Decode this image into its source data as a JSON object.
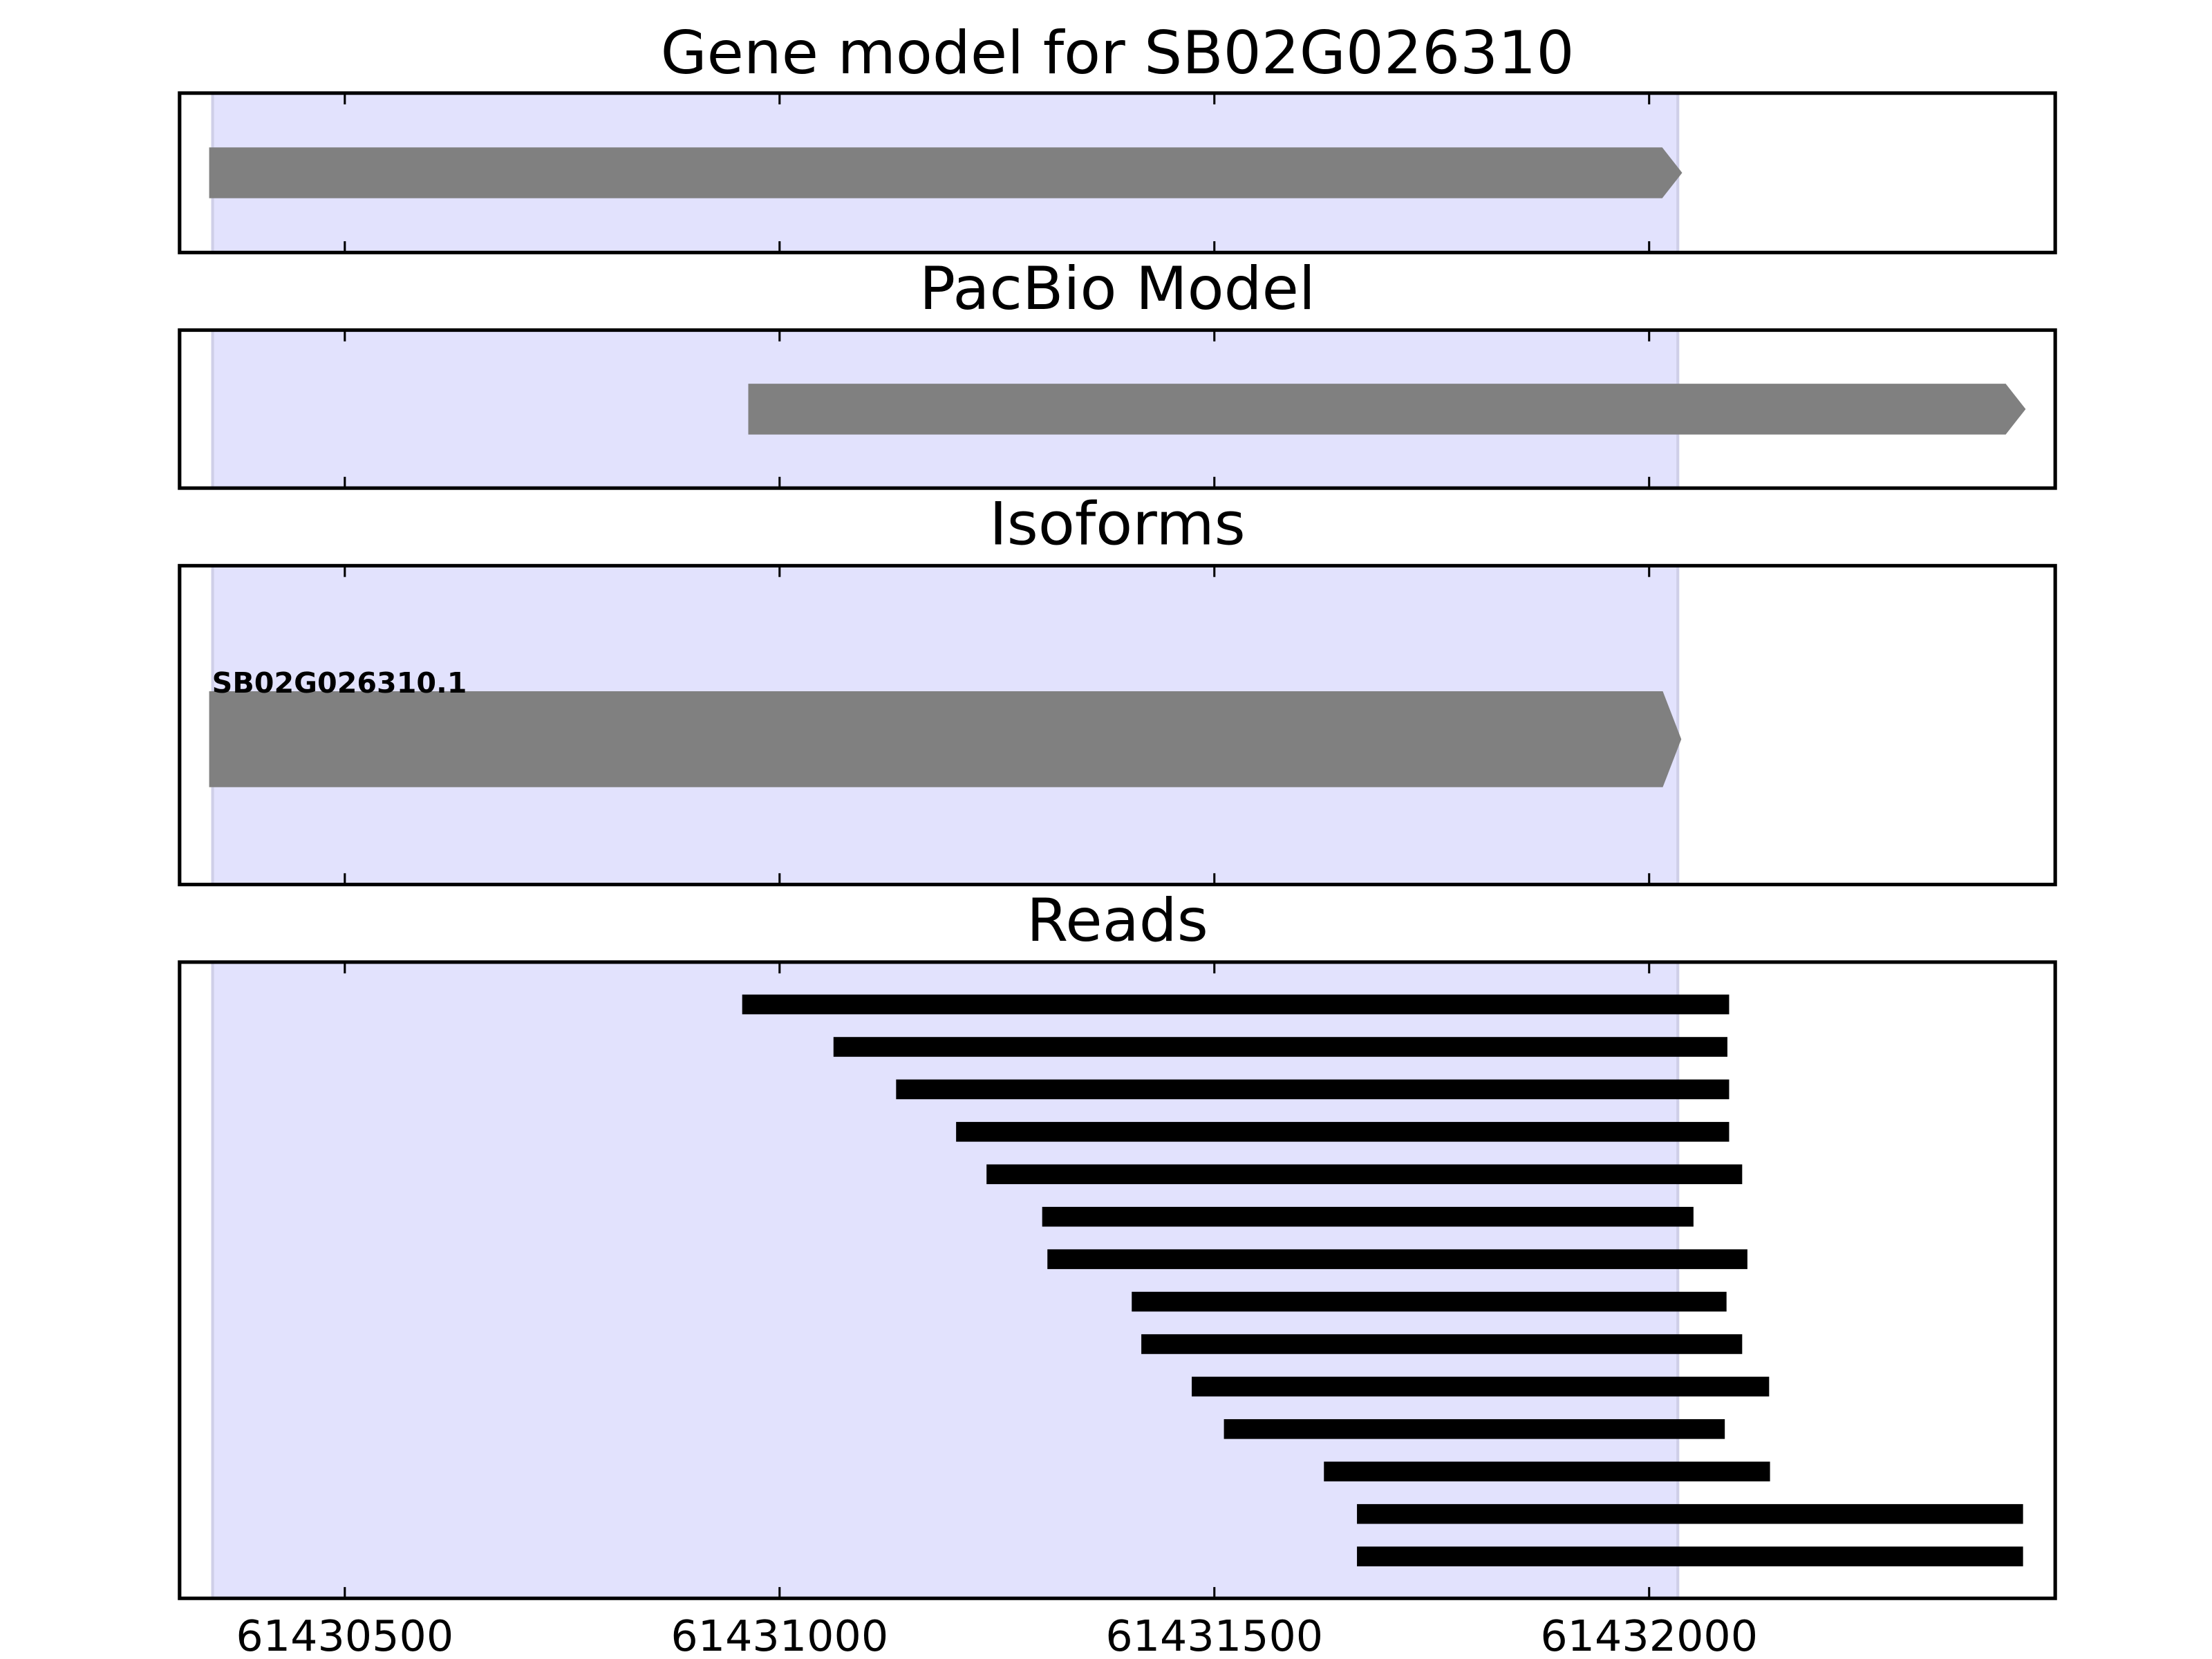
{
  "chart_data": [
    {
      "type": "gene",
      "title": "Gene model for SB02G026310",
      "xlim": [
        61430310,
        61432467
      ],
      "xticks": [
        61430500,
        61431000,
        61431500,
        61432000
      ],
      "highlight": [
        61430348,
        61432033
      ],
      "color": "#808080",
      "highlight_color": "#e2e2fd",
      "features": [
        {
          "start": 61430344,
          "end": 61432038
        }
      ]
    },
    {
      "type": "gene",
      "title": "PacBio Model",
      "xlim": [
        61430310,
        61432467
      ],
      "xticks": [
        61430500,
        61431000,
        61431500,
        61432000
      ],
      "highlight": [
        61430348,
        61432033
      ],
      "color": "#808080",
      "highlight_color": "#e2e2fd",
      "features": [
        {
          "start": 61430964,
          "end": 61432433
        }
      ]
    },
    {
      "type": "isoform",
      "title": "Isoforms",
      "xlim": [
        61430310,
        61432467
      ],
      "xticks": [
        61430500,
        61431000,
        61431500,
        61432000
      ],
      "highlight": [
        61430348,
        61432033
      ],
      "color": "#808080",
      "highlight_color": "#e2e2fd",
      "features": [
        {
          "label": "SB02G026310.1",
          "start": 61430344,
          "end": 61432037
        }
      ]
    },
    {
      "type": "reads",
      "title": "Reads",
      "xlim": [
        61430310,
        61432467
      ],
      "xticks": [
        61430500,
        61431000,
        61431500,
        61432000
      ],
      "highlight": [
        61430348,
        61432033
      ],
      "color": "#000000",
      "highlight_color": "#e2e2fd",
      "features": [
        {
          "start": 61430957,
          "end": 61432092
        },
        {
          "start": 61431062,
          "end": 61432090
        },
        {
          "start": 61431134,
          "end": 61432092
        },
        {
          "start": 61431203,
          "end": 61432092
        },
        {
          "start": 61431238,
          "end": 61432107
        },
        {
          "start": 61431302,
          "end": 61432051
        },
        {
          "start": 61431308,
          "end": 61432113
        },
        {
          "start": 61431405,
          "end": 61432089
        },
        {
          "start": 61431416,
          "end": 61432107
        },
        {
          "start": 61431474,
          "end": 61432138
        },
        {
          "start": 61431511,
          "end": 61432087
        },
        {
          "start": 61431626,
          "end": 61432139
        },
        {
          "start": 61431664,
          "end": 61432430
        },
        {
          "start": 61431664,
          "end": 61432430
        }
      ]
    }
  ]
}
